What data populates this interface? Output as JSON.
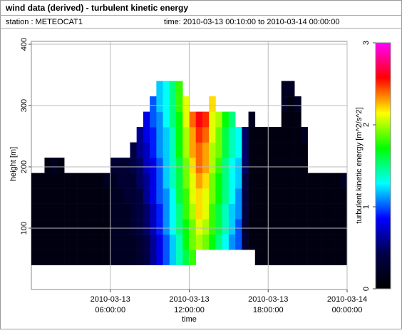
{
  "header": {
    "title": "wind data (derived) - turbulent kinetic energy",
    "station": "station : METEOCAT1",
    "time": "time: 2010-03-13 00:10:00 to 2010-03-14 00:00:00"
  },
  "chart_data": {
    "type": "heatmap",
    "xlabel": "time",
    "ylabel": "height [m]",
    "zlabel": "turbulent kinetic energy [m^2/s^2]",
    "xlim": [
      "2010-03-13 00:00:00",
      "2010-03-14 00:00:00"
    ],
    "xticks": [
      {
        "value": "2010-03-13 06:00:00",
        "label": [
          "2010-03-13",
          "06:00:00"
        ]
      },
      {
        "value": "2010-03-13 12:00:00",
        "label": [
          "2010-03-13",
          "12:00:00"
        ]
      },
      {
        "value": "2010-03-13 18:00:00",
        "label": [
          "2010-03-13",
          "18:00:00"
        ]
      },
      {
        "value": "2010-03-14 00:00:00",
        "label": [
          "2010-03-14",
          "00:00:00"
        ]
      }
    ],
    "ylim": [
      0,
      400
    ],
    "yticks": [
      100,
      200,
      300,
      400
    ],
    "grid": true,
    "zlim": [
      0,
      3
    ],
    "zticks": [
      0,
      1,
      2,
      3
    ],
    "colormap": [
      "#000000",
      "#000048",
      "#0000ff",
      "#00ffff",
      "#00ff00",
      "#ffff00",
      "#ff0000",
      "#ff00ff"
    ],
    "ybins": [
      40,
      65,
      90,
      115,
      140,
      165,
      190,
      215,
      240,
      265,
      290,
      315,
      340,
      365
    ],
    "x": [
      "2010-03-13 00:00:00",
      "2010-03-13 00:30:00",
      "2010-03-13 01:00:00",
      "2010-03-13 01:30:00",
      "2010-03-13 02:00:00",
      "2010-03-13 02:30:00",
      "2010-03-13 03:00:00",
      "2010-03-13 03:30:00",
      "2010-03-13 04:00:00",
      "2010-03-13 04:30:00",
      "2010-03-13 05:00:00",
      "2010-03-13 05:30:00",
      "2010-03-13 06:00:00",
      "2010-03-13 06:30:00",
      "2010-03-13 07:00:00",
      "2010-03-13 07:30:00",
      "2010-03-13 08:00:00",
      "2010-03-13 08:30:00",
      "2010-03-13 09:00:00",
      "2010-03-13 09:30:00",
      "2010-03-13 10:00:00",
      "2010-03-13 10:30:00",
      "2010-03-13 11:00:00",
      "2010-03-13 11:30:00",
      "2010-03-13 12:00:00",
      "2010-03-13 12:30:00",
      "2010-03-13 13:00:00",
      "2010-03-13 13:30:00",
      "2010-03-13 14:00:00",
      "2010-03-13 14:30:00",
      "2010-03-13 15:00:00",
      "2010-03-13 15:30:00",
      "2010-03-13 16:00:00",
      "2010-03-13 16:30:00",
      "2010-03-13 17:00:00",
      "2010-03-13 17:30:00",
      "2010-03-13 18:00:00",
      "2010-03-13 18:30:00",
      "2010-03-13 19:00:00",
      "2010-03-13 19:30:00",
      "2010-03-13 20:00:00",
      "2010-03-13 20:30:00",
      "2010-03-13 21:00:00",
      "2010-03-13 21:30:00",
      "2010-03-13 22:00:00",
      "2010-03-13 22:30:00",
      "2010-03-13 23:00:00",
      "2010-03-13 23:30:00"
    ],
    "values": [
      [
        0.1,
        0.1,
        0.1,
        0.1,
        0.1,
        0.1,
        null,
        null,
        null,
        null,
        null,
        null,
        null
      ],
      [
        0.1,
        0.1,
        0.1,
        0.1,
        0.1,
        0.1,
        null,
        null,
        null,
        null,
        null,
        null,
        null
      ],
      [
        0.1,
        0.1,
        0.1,
        0.1,
        0.1,
        0.1,
        0.1,
        null,
        null,
        null,
        null,
        null,
        null
      ],
      [
        0.1,
        0.1,
        0.1,
        0.1,
        0.1,
        0.1,
        0.2,
        null,
        null,
        null,
        null,
        null,
        null
      ],
      [
        0.1,
        0.1,
        0.1,
        0.1,
        0.1,
        0.1,
        0.1,
        null,
        null,
        null,
        null,
        null,
        null
      ],
      [
        0.1,
        0.1,
        0.1,
        0.1,
        0.1,
        0.1,
        null,
        null,
        null,
        null,
        null,
        null,
        null
      ],
      [
        0.1,
        0.1,
        0.1,
        0.1,
        0.1,
        0.1,
        null,
        null,
        null,
        null,
        null,
        null,
        null
      ],
      [
        0.1,
        0.1,
        0.1,
        0.1,
        0.1,
        0.1,
        null,
        null,
        null,
        null,
        null,
        null,
        null
      ],
      [
        0.1,
        0.1,
        0.1,
        0.1,
        0.1,
        0.1,
        null,
        null,
        null,
        null,
        null,
        null,
        null
      ],
      [
        0.1,
        0.1,
        0.1,
        0.1,
        0.1,
        0.1,
        null,
        null,
        null,
        null,
        null,
        null,
        null
      ],
      [
        0.1,
        0.1,
        0.1,
        0.1,
        0.1,
        0.1,
        null,
        null,
        null,
        null,
        null,
        null,
        null
      ],
      [
        0.1,
        0.1,
        0.1,
        0.1,
        0.1,
        0.2,
        null,
        null,
        null,
        null,
        null,
        null,
        null
      ],
      [
        0.2,
        0.2,
        0.2,
        0.2,
        0.2,
        0.2,
        0.3,
        null,
        null,
        null,
        null,
        null,
        null
      ],
      [
        0.2,
        0.2,
        0.2,
        0.2,
        0.2,
        0.3,
        0.3,
        null,
        null,
        null,
        null,
        null,
        null
      ],
      [
        0.2,
        0.2,
        0.2,
        0.2,
        0.3,
        0.3,
        0.3,
        null,
        null,
        null,
        null,
        null,
        null
      ],
      [
        0.2,
        0.2,
        0.3,
        0.3,
        0.3,
        0.3,
        0.4,
        0.4,
        null,
        null,
        null,
        null,
        null
      ],
      [
        0.3,
        0.3,
        0.4,
        0.4,
        0.4,
        0.5,
        0.5,
        0.6,
        0.6,
        null,
        null,
        null,
        null
      ],
      [
        0.4,
        0.4,
        0.5,
        0.5,
        0.6,
        0.6,
        0.7,
        0.7,
        0.8,
        0.8,
        null,
        null,
        null
      ],
      [
        0.6,
        0.6,
        0.7,
        0.7,
        0.8,
        0.8,
        0.8,
        0.9,
        0.9,
        1.0,
        1.0,
        null,
        null
      ],
      [
        0.8,
        0.8,
        0.9,
        0.9,
        1.0,
        1.0,
        1.0,
        1.1,
        1.1,
        1.1,
        1.2,
        1.2,
        null
      ],
      [
        1.0,
        1.0,
        1.1,
        1.1,
        1.1,
        1.2,
        1.2,
        1.2,
        1.2,
        1.3,
        1.3,
        1.3,
        null
      ],
      [
        1.2,
        1.2,
        1.3,
        1.3,
        1.3,
        1.4,
        1.4,
        1.4,
        1.4,
        1.5,
        1.5,
        1.5,
        null
      ],
      [
        1.4,
        1.4,
        1.5,
        1.5,
        1.6,
        1.6,
        1.6,
        1.7,
        1.7,
        1.7,
        1.8,
        1.8,
        null
      ],
      [
        1.6,
        1.7,
        1.7,
        1.8,
        1.8,
        1.9,
        1.9,
        2.0,
        2.0,
        2.1,
        2.1,
        null,
        null
      ],
      [
        1.8,
        1.9,
        1.9,
        2.0,
        2.1,
        2.1,
        2.2,
        2.3,
        2.3,
        2.4,
        null,
        null,
        null
      ],
      [
        null,
        2.0,
        2.1,
        2.2,
        2.2,
        2.3,
        2.4,
        2.4,
        2.5,
        2.6,
        null,
        null,
        null
      ],
      [
        null,
        1.9,
        2.0,
        2.1,
        2.1,
        2.2,
        2.3,
        2.3,
        2.4,
        2.5,
        null,
        null,
        null
      ],
      [
        null,
        1.7,
        1.8,
        1.8,
        1.9,
        1.9,
        2.0,
        2.0,
        2.1,
        2.1,
        2.2,
        null,
        null
      ],
      [
        null,
        1.5,
        1.6,
        1.6,
        1.7,
        1.7,
        1.8,
        1.9,
        1.9,
        2.0,
        null,
        null,
        null
      ],
      [
        null,
        1.3,
        1.4,
        1.4,
        1.5,
        1.5,
        1.5,
        1.6,
        1.6,
        1.7,
        null,
        null,
        null
      ],
      [
        null,
        1.1,
        1.2,
        1.2,
        1.3,
        1.3,
        1.3,
        1.4,
        1.4,
        1.5,
        null,
        null,
        null
      ],
      [
        null,
        1.0,
        1.0,
        1.1,
        1.1,
        1.2,
        1.2,
        1.3,
        1.3,
        null,
        null,
        null,
        null
      ],
      [
        null,
        0.3,
        0.3,
        0.4,
        0.4,
        0.4,
        0.5,
        0.5,
        0.5,
        null,
        null,
        null,
        null
      ],
      [
        null,
        0.1,
        0.1,
        0.1,
        0.1,
        0.1,
        0.1,
        0.1,
        0.1,
        0.2,
        null,
        null,
        null
      ],
      [
        0.1,
        0.1,
        0.1,
        0.1,
        0.1,
        0.1,
        0.1,
        0.1,
        0.1,
        null,
        null,
        null,
        null
      ],
      [
        0.1,
        0.1,
        0.1,
        0.1,
        0.1,
        0.1,
        0.1,
        0.1,
        0.1,
        null,
        null,
        null,
        null
      ],
      [
        0.1,
        0.1,
        0.1,
        0.1,
        0.1,
        0.1,
        0.1,
        0.1,
        0.1,
        null,
        null,
        null,
        null
      ],
      [
        0.1,
        0.1,
        0.1,
        0.1,
        0.1,
        0.1,
        0.1,
        0.1,
        0.1,
        null,
        null,
        null,
        null
      ],
      [
        0.1,
        0.1,
        0.1,
        0.1,
        0.1,
        0.1,
        0.1,
        0.1,
        0.1,
        0.1,
        0.2,
        0.2,
        null
      ],
      [
        0.1,
        0.1,
        0.1,
        0.1,
        0.1,
        0.1,
        0.1,
        0.1,
        0.1,
        0.1,
        0.1,
        0.2,
        null
      ],
      [
        0.1,
        0.1,
        0.1,
        0.1,
        0.1,
        0.1,
        0.1,
        0.1,
        0.1,
        0.1,
        0.2,
        null,
        null
      ],
      [
        0.1,
        0.1,
        0.1,
        0.1,
        0.1,
        0.1,
        0.1,
        0.1,
        0.2,
        null,
        null,
        null,
        null
      ],
      [
        0.1,
        0.1,
        0.1,
        0.1,
        0.1,
        0.1,
        null,
        null,
        null,
        null,
        null,
        null,
        null
      ],
      [
        0.1,
        0.1,
        0.1,
        0.1,
        0.1,
        0.1,
        null,
        null,
        null,
        null,
        null,
        null,
        null
      ],
      [
        0.1,
        0.1,
        0.1,
        0.1,
        0.1,
        0.1,
        null,
        null,
        null,
        null,
        null,
        null,
        null
      ],
      [
        0.1,
        0.1,
        0.1,
        0.1,
        0.1,
        0.1,
        null,
        null,
        null,
        null,
        null,
        null,
        null
      ],
      [
        0.1,
        0.1,
        0.1,
        0.1,
        0.1,
        0.1,
        null,
        null,
        null,
        null,
        null,
        null,
        null
      ],
      [
        0.1,
        0.1,
        0.1,
        0.1,
        0.1,
        0.2,
        null,
        null,
        null,
        null,
        null,
        null,
        null
      ]
    ]
  }
}
